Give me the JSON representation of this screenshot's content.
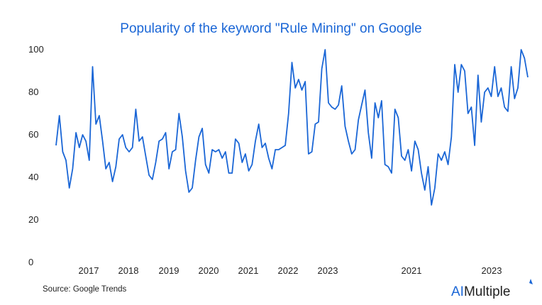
{
  "chart_data": {
    "type": "line",
    "title": "Popularity of the keyword \"Rule Mining\" on Google",
    "xlabel": "",
    "ylabel": "",
    "ylim": [
      0,
      100
    ],
    "yticks": [
      "0",
      "20",
      "40",
      "60",
      "80",
      "100"
    ],
    "xtick_labels": [
      "2017",
      "2018",
      "2019",
      "2020",
      "2021",
      "2022",
      "2023",
      "2021",
      "2023"
    ],
    "grid": false,
    "legend": "none",
    "line_color": "#1a66d6",
    "series": [
      {
        "values": [
          55,
          69,
          52,
          48,
          35,
          44,
          61,
          54,
          60,
          57,
          48,
          92,
          65,
          69,
          57,
          44,
          47,
          38,
          45,
          58,
          60,
          54,
          52,
          54,
          72,
          57,
          59,
          50,
          41,
          39,
          47,
          57,
          58,
          61,
          44,
          52,
          53,
          70,
          59,
          43,
          33,
          35,
          48,
          59,
          63,
          46,
          42,
          53,
          52,
          53,
          49,
          52,
          42,
          42,
          58,
          56,
          47,
          51,
          43,
          46,
          57,
          65,
          54,
          56,
          49,
          44,
          53,
          53,
          54,
          55,
          70,
          94,
          82,
          86,
          81,
          85,
          51,
          52,
          65,
          66,
          91,
          100,
          75,
          73,
          72,
          74,
          83,
          64,
          57,
          51,
          53,
          67,
          74,
          81,
          61,
          49,
          75,
          68,
          76,
          46,
          45,
          42,
          72,
          68,
          50,
          48,
          53,
          43,
          57,
          53,
          42,
          34,
          45,
          27,
          35,
          51,
          48,
          52,
          46,
          59,
          93,
          80,
          93,
          90,
          70,
          73,
          55,
          88,
          66,
          80,
          82,
          78,
          92,
          78,
          82,
          73,
          71,
          92,
          77,
          82,
          100,
          96,
          87
        ]
      }
    ]
  },
  "source": "Source: Google Trends",
  "brand": {
    "name_part1": "AI",
    "name_part2": "Multiple",
    "color_part1": "#1a66d6",
    "color_part2": "#222222"
  }
}
